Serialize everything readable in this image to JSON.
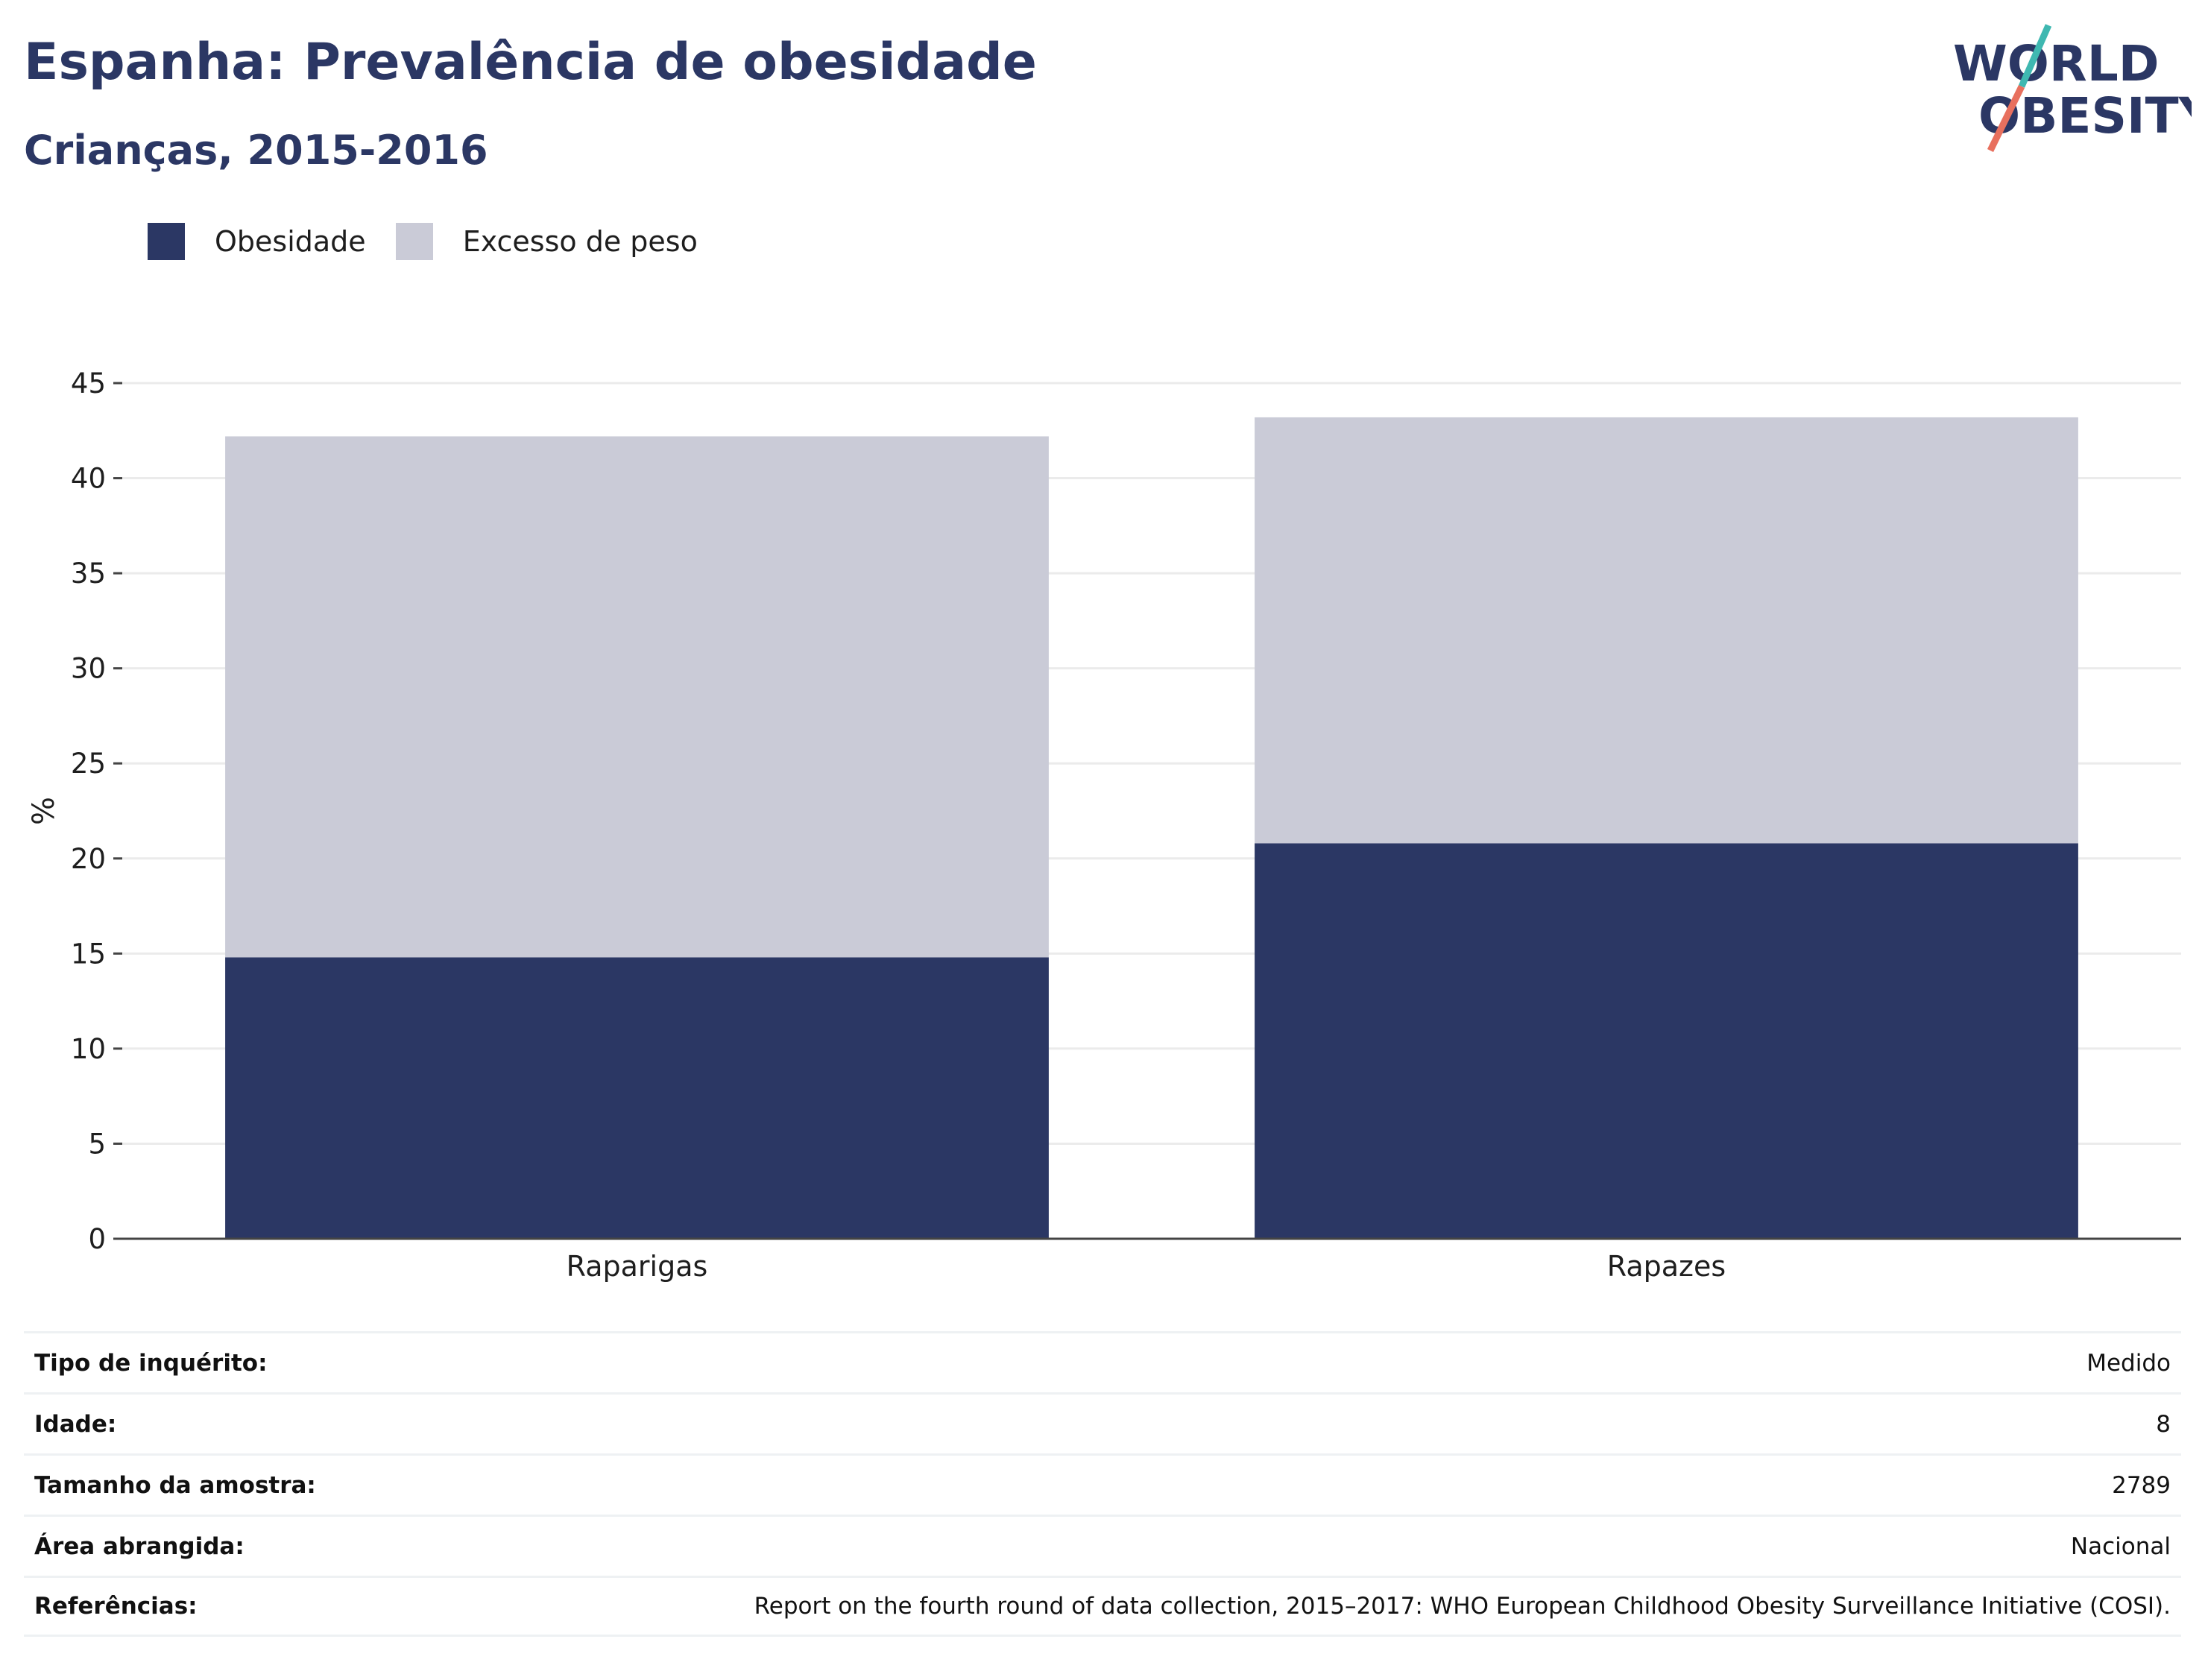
{
  "header": {
    "title": "Espanha: Prevalência de obesidade",
    "subtitle": "Crianças, 2015-2016"
  },
  "logo": {
    "line1": "WORLD",
    "line2": "OBESITY",
    "icon": "world-obesity-logo"
  },
  "colors": {
    "obesity": "#2b3764",
    "overweight": "#cacbd7",
    "title": "#2b3764",
    "logo_teal": "#3fb8b1",
    "logo_coral": "#e8705e"
  },
  "legend": [
    {
      "label": "Obesidade",
      "color": "#2b3764"
    },
    {
      "label": "Excesso de peso",
      "color": "#cacbd7"
    }
  ],
  "chart_data": {
    "type": "bar",
    "stacked": true,
    "categories": [
      "Raparigas",
      "Rapazes"
    ],
    "series": [
      {
        "name": "Obesidade",
        "values": [
          14.8,
          20.8
        ]
      },
      {
        "name": "Excesso de peso",
        "values": [
          27.4,
          22.4
        ]
      }
    ],
    "ylabel": "%",
    "ylim": [
      0,
      45
    ],
    "yticks": [
      0,
      5,
      10,
      15,
      20,
      25,
      30,
      35,
      40,
      45
    ],
    "grid": true,
    "legend_position": "top-left"
  },
  "info_table": [
    {
      "label": "Tipo de inquérito:",
      "value": "Medido"
    },
    {
      "label": "Idade:",
      "value": "8"
    },
    {
      "label": "Tamanho da amostra:",
      "value": "2789"
    },
    {
      "label": "Área abrangida:",
      "value": "Nacional"
    },
    {
      "label": "Referências:",
      "value": "Report on the fourth round of data collection, 2015–2017: WHO European Childhood Obesity Surveillance Initiative (COSI)."
    }
  ]
}
